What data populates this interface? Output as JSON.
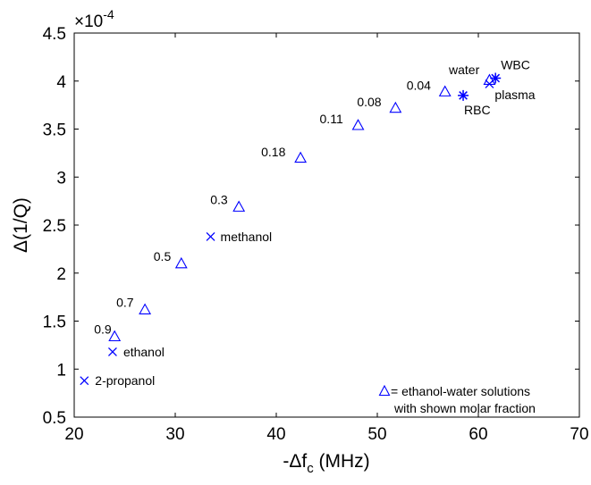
{
  "chart_data": {
    "type": "scatter",
    "xlabel_prefix": "-Δf",
    "xlabel_sub": "c",
    "xlabel_suffix": " (MHz)",
    "ylabel": "Δ(1/Q)",
    "xlim": [
      20,
      70
    ],
    "ylim": [
      0.5,
      4.5
    ],
    "x_ticks": [
      "20",
      "30",
      "40",
      "50",
      "60",
      "70"
    ],
    "y_ticks": [
      "0.5",
      "1",
      "1.5",
      "2",
      "2.5",
      "3",
      "3.5",
      "4",
      "4.5"
    ],
    "y_multiplier_base": "×10",
    "y_multiplier_exp": "-4",
    "series": [
      {
        "marker": "triangle",
        "color": "#0000ff",
        "points": [
          {
            "x": 24.0,
            "y": 1.34,
            "label": "0.9"
          },
          {
            "x": 27.0,
            "y": 1.62,
            "label": "0.7"
          },
          {
            "x": 30.6,
            "y": 2.1,
            "label": "0.5"
          },
          {
            "x": 36.3,
            "y": 2.69,
            "label": "0.3"
          },
          {
            "x": 42.4,
            "y": 3.2,
            "label": "0.18"
          },
          {
            "x": 48.1,
            "y": 3.54,
            "label": "0.11"
          },
          {
            "x": 51.8,
            "y": 3.72,
            "label": "0.08"
          },
          {
            "x": 56.7,
            "y": 3.89,
            "label": "0.04"
          },
          {
            "x": 61.1,
            "y": 4.01,
            "label": ""
          }
        ]
      },
      {
        "marker": "x",
        "color": "#0000ff",
        "points": [
          {
            "x": 21.0,
            "y": 0.88,
            "label": "2-propanol"
          },
          {
            "x": 23.8,
            "y": 1.18,
            "label": "ethanol"
          },
          {
            "x": 33.5,
            "y": 2.38,
            "label": "methanol"
          },
          {
            "x": 61.1,
            "y": 3.97,
            "label": "plasma"
          }
        ]
      },
      {
        "marker": "star",
        "color": "#0000ff",
        "points": [
          {
            "x": 58.5,
            "y": 3.85,
            "label": "RBC"
          },
          {
            "x": 61.7,
            "y": 4.03,
            "label": "WBC"
          }
        ]
      }
    ],
    "annotations": [
      "water"
    ],
    "legend": {
      "line1": "= ethanol-water solutions",
      "line2": "with shown molar fraction",
      "placement": "bottom-right"
    }
  }
}
